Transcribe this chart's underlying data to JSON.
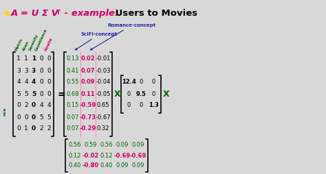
{
  "matrix_A": [
    [
      1,
      1,
      1,
      0,
      0
    ],
    [
      3,
      3,
      3,
      0,
      0
    ],
    [
      4,
      4,
      4,
      0,
      0
    ],
    [
      5,
      5,
      5,
      0,
      0
    ],
    [
      0,
      2,
      0,
      4,
      4
    ],
    [
      0,
      0,
      0,
      5,
      5
    ],
    [
      0,
      1,
      0,
      2,
      2
    ]
  ],
  "matrix_U": [
    [
      0.13,
      0.02,
      -0.01
    ],
    [
      0.41,
      0.07,
      -0.03
    ],
    [
      0.55,
      0.09,
      -0.04
    ],
    [
      0.68,
      0.11,
      -0.05
    ],
    [
      0.15,
      -0.59,
      0.65
    ],
    [
      0.07,
      -0.73,
      -0.67
    ],
    [
      0.07,
      -0.29,
      0.32
    ]
  ],
  "matrix_Sigma": [
    [
      12.4,
      0,
      0
    ],
    [
      0,
      9.5,
      0
    ],
    [
      0,
      0,
      1.3
    ]
  ],
  "matrix_VT": [
    [
      0.56,
      0.59,
      0.56,
      0.09,
      0.09
    ],
    [
      0.12,
      -0.02,
      0.12,
      -0.69,
      -0.69
    ],
    [
      0.4,
      -0.8,
      0.4,
      0.09,
      0.09
    ]
  ],
  "col_labels": [
    "Matrix",
    "Alien",
    "Serenity",
    "Casablanca",
    "Amelie"
  ],
  "col_label_colors": [
    "#006600",
    "#006600",
    "#006600",
    "#006600",
    "#cc0066"
  ],
  "scifi_label": "SciFi-concept",
  "romance_label": "Romance-concept",
  "bg_color": "#d8d8d8",
  "title_square_color": "#FFD700",
  "title_math_color": "#cc0066",
  "title_words": "Users to Movies",
  "green": "#006600",
  "pink": "#cc0066",
  "blue": "#2222aa"
}
